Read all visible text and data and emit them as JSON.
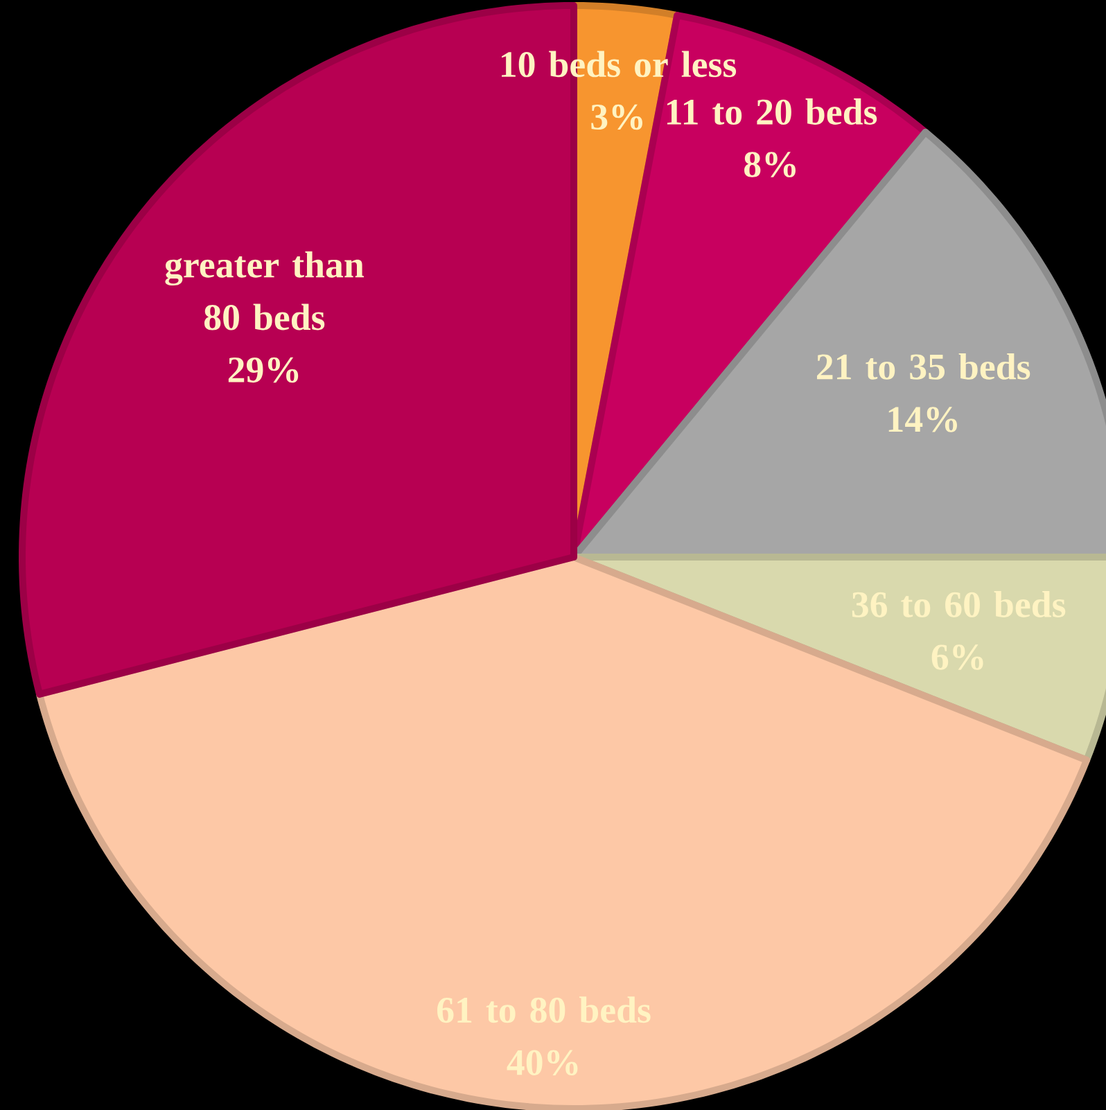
{
  "chart_data": {
    "type": "pie",
    "categories": [
      "10 beds or less",
      "11 to 20 beds",
      "21 to 35 beds",
      "36 to 60 beds",
      "61 to 80 beds",
      "greater than 80 beds"
    ],
    "values": [
      3,
      8,
      14,
      6,
      40,
      29
    ],
    "value_labels": [
      "3%",
      "8%",
      "14%",
      "6%",
      "40%",
      "29%"
    ],
    "colors": [
      "#f7952f",
      "#c8005f",
      "#a6a6a6",
      "#d9d9ad",
      "#fdc8a6",
      "#b70052"
    ]
  }
}
